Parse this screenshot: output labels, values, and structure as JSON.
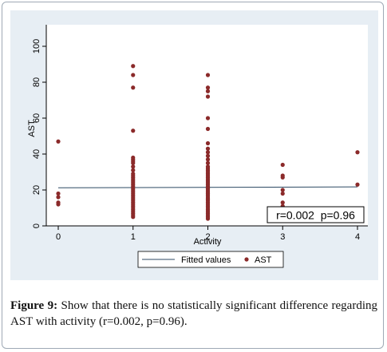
{
  "figure": {
    "caption_label": "Figure 9:",
    "caption_text": " Show that there is no statistically significant difference regarding AST with activity (r=0.002, p=0.96)."
  },
  "colors": {
    "panel_background": "#e7eef4",
    "plot_background": "#ffffff",
    "points": "#8b2a2a",
    "fitted_line": "#2d4a63"
  },
  "chart_data": {
    "type": "scatter",
    "xlabel": "Activity",
    "ylabel": "AST",
    "xlim": [
      0,
      4
    ],
    "ylim": [
      0,
      100
    ],
    "x_ticks": [
      0,
      1,
      2,
      3,
      4
    ],
    "y_ticks": [
      0,
      20,
      40,
      60,
      80,
      100
    ],
    "grid": false,
    "legend_position": "bottom",
    "annotation": "r=0.002  p=0.96",
    "series": [
      {
        "name": "Fitted values",
        "kind": "line",
        "x": [
          0,
          4
        ],
        "y": [
          21.2,
          21.7
        ]
      },
      {
        "name": "AST",
        "kind": "scatter",
        "x": [
          0,
          0,
          0,
          0,
          0,
          1,
          1,
          1,
          1,
          1,
          1,
          1,
          1,
          1,
          1,
          1,
          1,
          1,
          1,
          1,
          1,
          1,
          1,
          1,
          1,
          1,
          1,
          1,
          1,
          1,
          1,
          1,
          1,
          1,
          1,
          1,
          1,
          1,
          1,
          1,
          2,
          2,
          2,
          2,
          2,
          2,
          2,
          2,
          2,
          2,
          2,
          2,
          2,
          2,
          2,
          2,
          2,
          2,
          2,
          2,
          2,
          2,
          2,
          2,
          2,
          2,
          2,
          2,
          2,
          2,
          2,
          2,
          2,
          2,
          2,
          2,
          2,
          2,
          2,
          2,
          2,
          2,
          2,
          2,
          2,
          3,
          3,
          3,
          3,
          3,
          3,
          3,
          3,
          3,
          3,
          4,
          4
        ],
        "y": [
          47,
          18,
          13,
          12,
          16,
          89,
          84,
          77,
          53,
          38,
          37,
          36,
          35,
          33,
          31,
          29,
          28,
          27,
          26,
          25,
          24,
          23,
          22,
          21,
          20,
          19,
          18,
          17,
          16,
          15,
          14,
          13,
          12,
          11,
          10,
          9,
          8,
          7,
          6,
          5,
          84,
          77,
          75,
          72,
          60,
          54,
          46,
          43,
          41,
          39,
          37,
          35,
          33,
          32,
          31,
          30,
          29,
          28,
          27,
          26,
          25,
          24,
          23,
          22,
          21,
          20,
          19,
          18,
          17,
          16,
          15,
          14,
          13,
          12,
          11,
          10,
          9,
          8,
          7,
          6,
          5,
          4,
          15,
          18,
          21,
          34,
          28,
          27,
          20,
          18,
          13,
          11,
          9,
          8,
          6,
          41,
          23
        ]
      }
    ]
  }
}
